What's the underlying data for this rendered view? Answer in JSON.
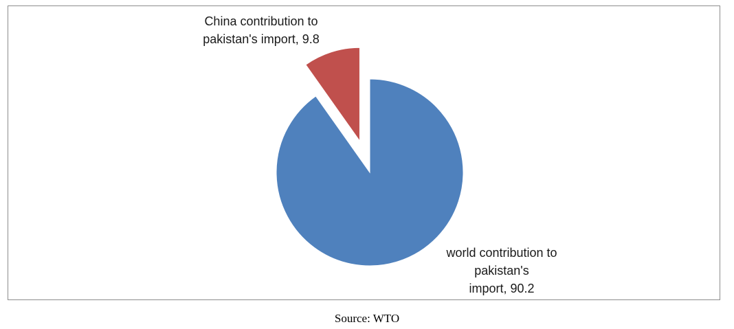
{
  "chart_data": {
    "type": "pie",
    "title": "",
    "slices": [
      {
        "label": "world contribution to pakistan's import",
        "value": 90.2,
        "color": "#4F81BD",
        "exploded": false
      },
      {
        "label": "China contribution to pakistan's import",
        "value": 9.8,
        "color": "#C0504D",
        "exploded": true
      }
    ],
    "data_labels": {
      "world": "world contribution to\npakistan's\nimport, 90.2",
      "china": "China contribution to\npakistan's import, 9.8"
    }
  },
  "source": "Source: WTO"
}
